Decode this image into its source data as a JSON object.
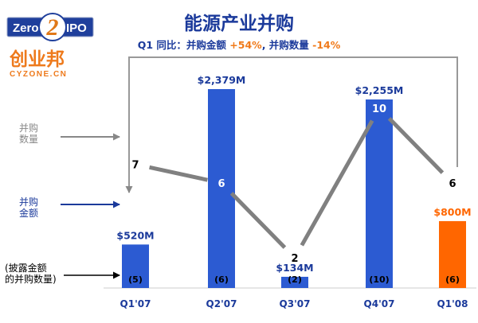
{
  "header": {
    "title": "能源产业并购",
    "subtitle_prefix": "Q1 同比：并购金额 ",
    "subtitle_amount_change": "+54%",
    "subtitle_sep": ", 并购数量 ",
    "subtitle_count_change": "-14%"
  },
  "logos": {
    "zero2ipo": {
      "left_text": "Zero",
      "digit": "2",
      "right_text": "IPO"
    },
    "cyzone": {
      "cn_text": "创业邦",
      "en_text": "CYZONE.CN"
    }
  },
  "side_labels": {
    "count": [
      "并购",
      "数量"
    ],
    "amount": [
      "并购",
      "金额"
    ],
    "disclosed": [
      "(披露金额",
      "的并购数量)"
    ]
  },
  "colors": {
    "bar_primary": "#2c5bd2",
    "bar_highlight": "#ff6600",
    "line": "#808080",
    "title": "#1b3a9b"
  },
  "chart_data": {
    "type": "bar",
    "categories": [
      "Q1'07",
      "Q2'07",
      "Q3'07",
      "Q4'07",
      "Q1'08"
    ],
    "series": [
      {
        "name": "并购金额",
        "unit": "US$M",
        "values": [
          520,
          2379,
          134,
          2255,
          800
        ],
        "labels": [
          "$520M",
          "$2,379M",
          "$134M",
          "$2,255M",
          "$800M"
        ]
      },
      {
        "name": "并购数量",
        "type": "line",
        "values": [
          7,
          6,
          2,
          10,
          6
        ],
        "labels": [
          "7",
          "6",
          "2",
          "10",
          "6"
        ]
      },
      {
        "name": "披露金额的并购数量",
        "values": [
          5,
          6,
          2,
          10,
          6
        ],
        "labels": [
          "(5)",
          "(6)",
          "(2)",
          "(10)",
          "(6)"
        ]
      }
    ],
    "highlight_category": "Q1'08",
    "comparison": {
      "amount_change": "+54%",
      "count_change": "-14%"
    }
  }
}
